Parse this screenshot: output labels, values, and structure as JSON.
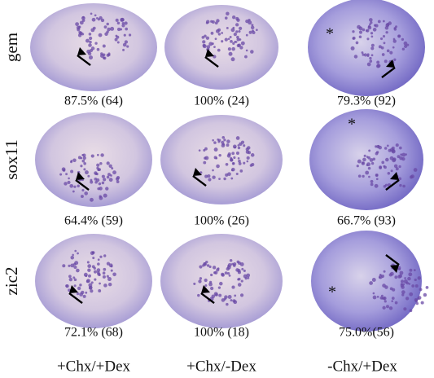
{
  "row_labels": [
    "gem",
    "sox11",
    "zic2"
  ],
  "column_labels": [
    "+Chx/+Dex",
    "+Chx/-Dex",
    "-Chx/+Dex"
  ],
  "cells": [
    [
      {
        "caption": "87.5% (64)"
      },
      {
        "caption": "100% (24)"
      },
      {
        "caption": "79.3% (92)",
        "marker": "*"
      }
    ],
    [
      {
        "caption": "64.4% (59)"
      },
      {
        "caption": "100% (26)"
      },
      {
        "caption": "66.7% (93)",
        "marker": "*"
      }
    ],
    [
      {
        "caption": "72.1% (68)"
      },
      {
        "caption": "100% (18)"
      },
      {
        "caption": "75.0%(56)",
        "marker": "*"
      }
    ]
  ]
}
